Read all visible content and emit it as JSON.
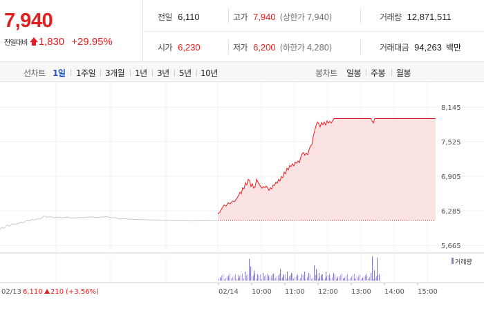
{
  "header": {
    "current_price": "7,940",
    "change_label": "전일대비",
    "change_value": "1,830",
    "change_pct": "+29.95%",
    "prev_close_label": "전일",
    "prev_close": "6,110",
    "high_label": "고가",
    "high": "7,940",
    "upper_limit": "(상한가 7,940)",
    "volume_label": "거래량",
    "volume": "12,871,511",
    "open_label": "시가",
    "open": "6,230",
    "low_label": "저가",
    "low": "6,200",
    "lower_limit": "(하한가 4,280)",
    "value_label": "거래대금",
    "value": "94,263",
    "value_unit": "백만"
  },
  "tabs": {
    "line_chart_label": "선차트",
    "line_periods": [
      "1일",
      "1주일",
      "3개월",
      "1년",
      "3년",
      "5년",
      "10년"
    ],
    "active_period": "1일",
    "candle_chart_label": "봉차트",
    "candle_periods": [
      "일봉",
      "주봉",
      "월봉"
    ]
  },
  "colors": {
    "up": "#e02020",
    "prev_day_line": "#c8c8c8",
    "area_fill": "#fbe3e3",
    "volume_bar": "#8c7fbf",
    "active_tab": "#1a56c9"
  },
  "chart_data": {
    "type": "line",
    "y_ticks": [
      "8,145",
      "7,525",
      "6,905",
      "6,285",
      "5,665"
    ],
    "ylim": [
      5665,
      8145
    ],
    "x_ticks": [
      "02/14",
      "10:00",
      "11:00",
      "12:00",
      "13:00",
      "14:00",
      "15:00"
    ],
    "prev_day_label": "02/13",
    "prev_day_close": "6,110",
    "prev_day_change": "210",
    "prev_day_change_pct": "(+3.56%)",
    "volume_legend": "거래량",
    "reference_price": 6110,
    "series": [
      {
        "name": "02/13",
        "points": [
          [
            0,
            5950
          ],
          [
            3,
            5990
          ],
          [
            6,
            5970
          ],
          [
            10,
            6030
          ],
          [
            14,
            6010
          ],
          [
            18,
            6050
          ],
          [
            22,
            6040
          ],
          [
            27,
            6060
          ],
          [
            30,
            6080
          ],
          [
            34,
            6070
          ],
          [
            38,
            6110
          ],
          [
            42,
            6100
          ],
          [
            46,
            6130
          ],
          [
            50,
            6120
          ],
          [
            55,
            6140
          ],
          [
            60,
            6150
          ],
          [
            64,
            6200
          ],
          [
            68,
            6170
          ],
          [
            72,
            6180
          ],
          [
            78,
            6160
          ],
          [
            84,
            6170
          ],
          [
            90,
            6160
          ],
          [
            96,
            6170
          ],
          [
            102,
            6160
          ],
          [
            108,
            6155
          ],
          [
            114,
            6165
          ],
          [
            120,
            6160
          ],
          [
            126,
            6170
          ],
          [
            132,
            6175
          ],
          [
            138,
            6165
          ],
          [
            144,
            6170
          ],
          [
            150,
            6175
          ],
          [
            156,
            6180
          ],
          [
            160,
            6160
          ],
          [
            166,
            6165
          ],
          [
            172,
            6140
          ],
          [
            178,
            6145
          ],
          [
            186,
            6135
          ],
          [
            194,
            6130
          ],
          [
            202,
            6128
          ],
          [
            210,
            6125
          ],
          [
            218,
            6120
          ],
          [
            226,
            6118
          ],
          [
            234,
            6115
          ],
          [
            242,
            6112
          ],
          [
            250,
            6110
          ],
          [
            258,
            6108
          ],
          [
            266,
            6106
          ],
          [
            274,
            6104
          ],
          [
            282,
            6104
          ],
          [
            290,
            6108
          ],
          [
            298,
            6104
          ],
          [
            306,
            6106
          ],
          [
            314,
            6110
          ]
        ]
      },
      {
        "name": "02/14",
        "points": [
          [
            315,
            6230
          ],
          [
            318,
            6260
          ],
          [
            321,
            6330
          ],
          [
            324,
            6390
          ],
          [
            327,
            6370
          ],
          [
            330,
            6430
          ],
          [
            333,
            6410
          ],
          [
            336,
            6460
          ],
          [
            339,
            6450
          ],
          [
            342,
            6500
          ],
          [
            345,
            6560
          ],
          [
            347,
            6620
          ],
          [
            349,
            6590
          ],
          [
            351,
            6700
          ],
          [
            353,
            6680
          ],
          [
            355,
            6790
          ],
          [
            357,
            6750
          ],
          [
            359,
            6850
          ],
          [
            361,
            6830
          ],
          [
            363,
            6720
          ],
          [
            365,
            6770
          ],
          [
            367,
            6690
          ],
          [
            369,
            6720
          ],
          [
            371,
            6850
          ],
          [
            373,
            6800
          ],
          [
            375,
            6760
          ],
          [
            377,
            6720
          ],
          [
            379,
            6690
          ],
          [
            381,
            6720
          ],
          [
            383,
            6700
          ],
          [
            385,
            6730
          ],
          [
            387,
            6700
          ],
          [
            389,
            6650
          ],
          [
            391,
            6700
          ],
          [
            393,
            6680
          ],
          [
            395,
            6750
          ],
          [
            397,
            6740
          ],
          [
            399,
            6800
          ],
          [
            401,
            6780
          ],
          [
            403,
            6850
          ],
          [
            405,
            6820
          ],
          [
            407,
            6900
          ],
          [
            409,
            6880
          ],
          [
            411,
            6980
          ],
          [
            413,
            6950
          ],
          [
            415,
            7050
          ],
          [
            417,
            7020
          ],
          [
            419,
            7100
          ],
          [
            421,
            7080
          ],
          [
            423,
            7130
          ],
          [
            425,
            7090
          ],
          [
            427,
            7160
          ],
          [
            429,
            7140
          ],
          [
            431,
            7180
          ],
          [
            433,
            7150
          ],
          [
            435,
            7250
          ],
          [
            437,
            7310
          ],
          [
            439,
            7330
          ],
          [
            441,
            7280
          ],
          [
            443,
            7320
          ],
          [
            445,
            7290
          ],
          [
            447,
            7380
          ],
          [
            449,
            7450
          ],
          [
            451,
            7470
          ],
          [
            453,
            7620
          ],
          [
            455,
            7720
          ],
          [
            457,
            7810
          ],
          [
            459,
            7880
          ],
          [
            461,
            7850
          ],
          [
            463,
            7790
          ],
          [
            465,
            7870
          ],
          [
            467,
            7830
          ],
          [
            469,
            7880
          ],
          [
            471,
            7820
          ],
          [
            473,
            7900
          ],
          [
            475,
            7860
          ],
          [
            477,
            7890
          ],
          [
            479,
            7860
          ],
          [
            481,
            7900
          ],
          [
            483,
            7940
          ],
          [
            536,
            7940
          ],
          [
            538,
            7900
          ],
          [
            540,
            7860
          ],
          [
            542,
            7940
          ],
          [
            630,
            7940
          ]
        ]
      }
    ],
    "volume_spikes": [
      [
        318,
        0.12
      ],
      [
        330,
        0.15
      ],
      [
        345,
        0.22
      ],
      [
        354,
        0.35
      ],
      [
        360,
        0.85
      ],
      [
        362,
        0.55
      ],
      [
        367,
        0.4
      ],
      [
        372,
        0.25
      ],
      [
        380,
        0.3
      ],
      [
        388,
        0.2
      ],
      [
        395,
        0.28
      ],
      [
        405,
        0.45
      ],
      [
        409,
        0.25
      ],
      [
        415,
        0.35
      ],
      [
        421,
        0.3
      ],
      [
        430,
        0.2
      ],
      [
        436,
        0.25
      ],
      [
        440,
        0.35
      ],
      [
        446,
        0.3
      ],
      [
        454,
        0.6
      ],
      [
        457,
        0.45
      ],
      [
        461,
        0.3
      ],
      [
        465,
        0.25
      ],
      [
        471,
        0.35
      ],
      [
        476,
        0.22
      ],
      [
        482,
        0.3
      ],
      [
        487,
        0.15
      ],
      [
        497,
        0.1
      ],
      [
        512,
        0.08
      ],
      [
        524,
        0.12
      ],
      [
        530,
        0.18
      ],
      [
        536,
        0.3
      ],
      [
        538,
        0.95
      ],
      [
        541,
        0.4
      ],
      [
        545,
        0.9
      ],
      [
        548,
        0.2
      ]
    ]
  }
}
